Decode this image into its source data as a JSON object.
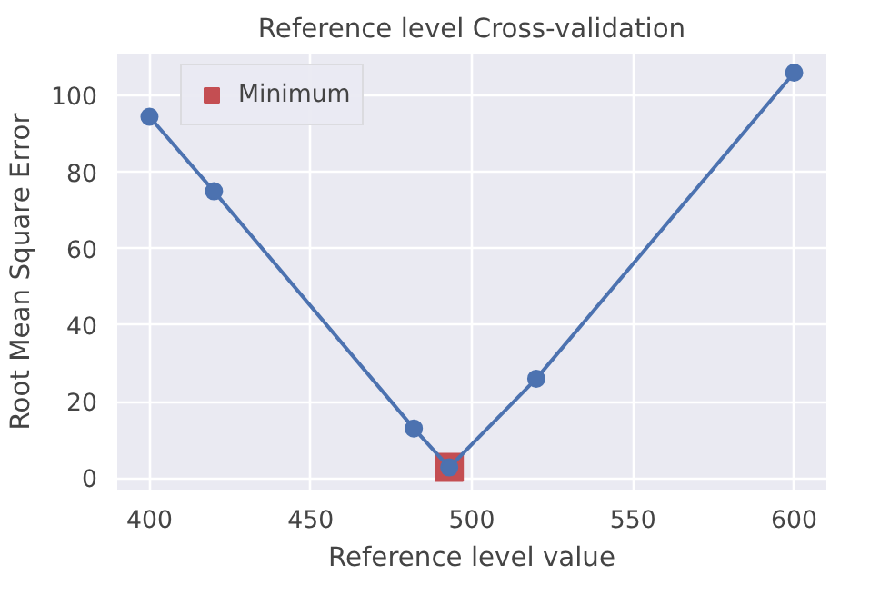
{
  "chart_data": {
    "type": "line",
    "title": "Reference level Cross-validation",
    "xlabel": "Reference level value",
    "ylabel": "Root Mean Square Error",
    "x": [
      400,
      420,
      482,
      493,
      520,
      600
    ],
    "series": [
      {
        "color": "#4c72b0",
        "marker": "circle",
        "values": [
          94.5,
          75,
          13,
          2.8,
          26,
          106
        ]
      },
      {
        "type": "scatter",
        "name": "Minimum",
        "color": "#c44e52",
        "marker": "square",
        "x": [
          493
        ],
        "values": [
          2.8
        ]
      }
    ],
    "xlim": [
      390,
      610
    ],
    "ylim": [
      -3,
      111
    ],
    "xticks": [
      400,
      450,
      500,
      550,
      600
    ],
    "yticks": [
      0,
      20,
      40,
      60,
      80,
      100
    ],
    "grid": true,
    "legend": "top left"
  }
}
